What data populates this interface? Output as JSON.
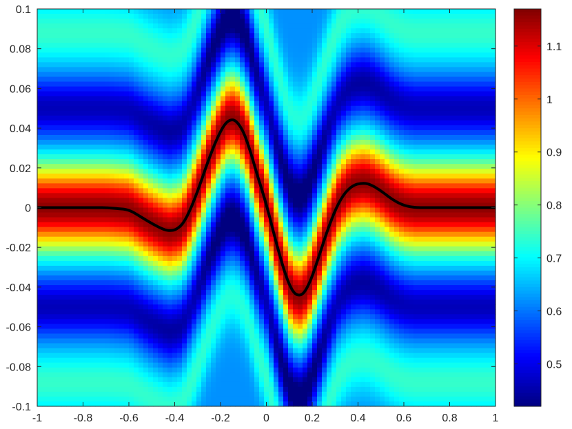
{
  "chart_data": {
    "type": "heatmap",
    "title": "",
    "xlabel": "",
    "ylabel": "",
    "xlim": [
      -1,
      1
    ],
    "ylim": [
      -0.1,
      0.1
    ],
    "x_ticks": [
      "-1",
      "-0.8",
      "-0.6",
      "-0.4",
      "-0.2",
      "0",
      "0.2",
      "0.4",
      "0.6",
      "0.8",
      "1"
    ],
    "y_ticks": [
      "0.1",
      "0.08",
      "0.06",
      "0.04",
      "0.02",
      "0",
      "-0.02",
      "-0.04",
      "-0.06",
      "-0.08",
      "-0.1"
    ],
    "colormap": "jet",
    "colorbar": {
      "range": [
        0.42,
        1.17
      ],
      "ticks": [
        "1.1",
        "1",
        "0.9",
        "0.8",
        "0.7",
        "0.6",
        "0.5"
      ]
    },
    "grid": false,
    "line_color": "#000000",
    "line_series": {
      "x": [
        -1.0,
        -0.9,
        -0.8,
        -0.7,
        -0.6,
        -0.5,
        -0.45,
        -0.42,
        -0.38,
        -0.35,
        -0.3,
        -0.25,
        -0.2,
        -0.17,
        -0.15,
        -0.12,
        -0.08,
        -0.05,
        0.0,
        0.05,
        0.1,
        0.13,
        0.15,
        0.18,
        0.22,
        0.27,
        0.32,
        0.37,
        0.42,
        0.45,
        0.5,
        0.55,
        0.6,
        0.65,
        0.7,
        0.8,
        0.9,
        1.0
      ],
      "y": [
        0.0,
        0.0,
        0.0,
        0.0,
        -0.001,
        -0.008,
        -0.011,
        -0.012,
        -0.0105,
        -0.006,
        0.008,
        0.025,
        0.039,
        0.044,
        0.045,
        0.043,
        0.033,
        0.02,
        0.002,
        -0.021,
        -0.04,
        -0.0445,
        -0.045,
        -0.041,
        -0.028,
        -0.01,
        0.004,
        0.011,
        0.0125,
        0.012,
        0.0085,
        0.004,
        0.001,
        0.0,
        0.0,
        0.0,
        0.0,
        0.0
      ]
    }
  }
}
